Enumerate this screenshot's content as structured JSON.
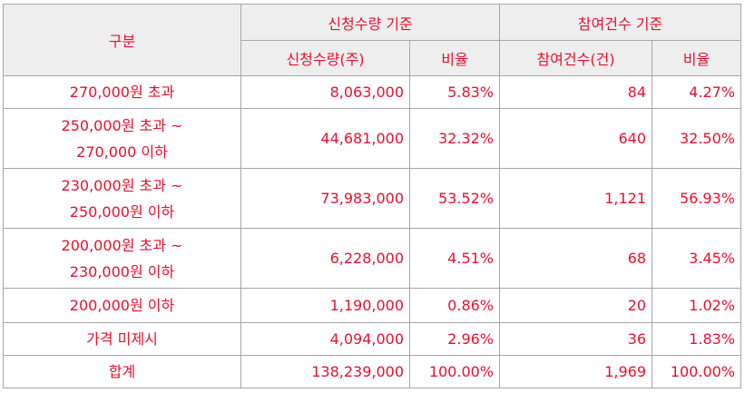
{
  "table": {
    "header": {
      "category": "구분",
      "group_quantity": "신청수량 기준",
      "group_count": "참여건수 기준",
      "col_quantity": "신청수량(주)",
      "col_quantity_ratio": "비율",
      "col_count": "참여건수(건)",
      "col_count_ratio": "비율"
    },
    "rows": [
      {
        "category": [
          "270,000원 초과"
        ],
        "quantity": "8,063,000",
        "quantity_ratio": "5.83%",
        "count": "84",
        "count_ratio": "4.27%"
      },
      {
        "category": [
          "250,000원 초과 ~",
          "270,000 이하"
        ],
        "quantity": "44,681,000",
        "quantity_ratio": "32.32%",
        "count": "640",
        "count_ratio": "32.50%"
      },
      {
        "category": [
          "230,000원 초과 ~",
          "250,000원 이하"
        ],
        "quantity": "73,983,000",
        "quantity_ratio": "53.52%",
        "count": "1,121",
        "count_ratio": "56.93%"
      },
      {
        "category": [
          "200,000원 초과 ~",
          "230,000원 이하"
        ],
        "quantity": "6,228,000",
        "quantity_ratio": "4.51%",
        "count": "68",
        "count_ratio": "3.45%"
      },
      {
        "category": [
          "200,000원 이하"
        ],
        "quantity": "1,190,000",
        "quantity_ratio": "0.86%",
        "count": "20",
        "count_ratio": "1.02%"
      },
      {
        "category": [
          "가격 미제시"
        ],
        "quantity": "4,094,000",
        "quantity_ratio": "2.96%",
        "count": "36",
        "count_ratio": "1.83%"
      },
      {
        "category": [
          "합계"
        ],
        "quantity": "138,239,000",
        "quantity_ratio": "100.00%",
        "count": "1,969",
        "count_ratio": "100.00%"
      }
    ]
  }
}
